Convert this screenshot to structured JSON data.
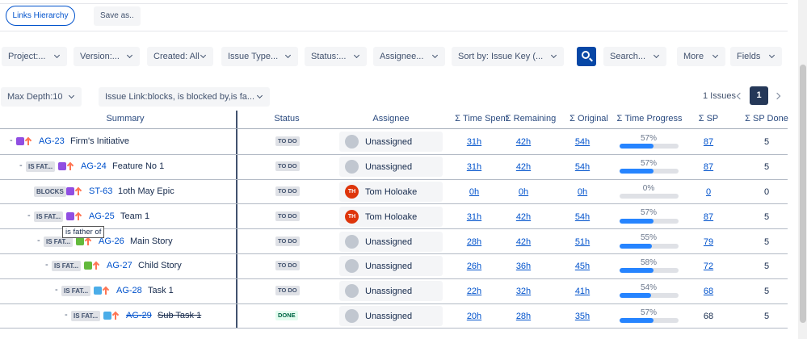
{
  "toolbar": {
    "links_hierarchy": "Links Hierarchy",
    "save_as": "Save as.."
  },
  "filters": [
    "Project:...",
    "Version:...",
    "Created: All",
    "Issue Type...",
    "Status:...",
    "Assignee...",
    "Sort by: Issue Key (..."
  ],
  "search": "Search...",
  "more": "More",
  "fields": "Fields",
  "max_depth": "Max Depth:10",
  "issue_link": "Issue Link:blocks, is blocked by,is fa...",
  "issues_count": "1 Issues",
  "page": "1",
  "columns": [
    "Summary",
    "Status",
    "Assignee",
    "Σ Time Spent",
    "Σ Remaining",
    "Σ Original",
    "Σ Time Progress",
    "Σ SP",
    "Σ SP Done"
  ],
  "tooltip": "is father of",
  "rows": [
    {
      "toggle": "-",
      "type_color": "#904ee2",
      "key": "AG-23",
      "summary": "Firm's Initiative",
      "status": "TO DO",
      "assignee": "Unassigned",
      "time_spent": "31h",
      "remaining": "42h",
      "original": "54h",
      "progress": 57,
      "progress_label": "57%",
      "sp": 87,
      "sp_done": 5
    },
    {
      "toggle": "-",
      "link": "IS FAT...",
      "type_color": "#904ee2",
      "key": "AG-24",
      "summary": "Feature No 1",
      "status": "TO DO",
      "assignee": "Unassigned",
      "time_spent": "31h",
      "remaining": "42h",
      "original": "54h",
      "progress": 57,
      "progress_label": "57%",
      "sp": 87,
      "sp_done": 5
    },
    {
      "link": "BLOCKS",
      "type_color": "#904ee2",
      "key": "ST-63",
      "summary": "1oth May Epic",
      "status": "TO DO",
      "avatar": "TH",
      "assignee": "Tom Holoake",
      "time_spent": "0h",
      "remaining": "0h",
      "original": "0h",
      "progress": 0,
      "progress_label": "0%",
      "sp": 0,
      "sp_done": 0
    },
    {
      "toggle": "-",
      "link": "IS FAT...",
      "type_color": "#904ee2",
      "key": "AG-25",
      "summary": "Team 1",
      "status": "TO DO",
      "avatar": "TH",
      "assignee": "Tom Holoake",
      "time_spent": "31h",
      "remaining": "42h",
      "original": "54h",
      "progress": 57,
      "progress_label": "57%",
      "sp": 87,
      "sp_done": 5
    },
    {
      "toggle": "-",
      "link": "IS FAT...",
      "type_color": "#63ba3c",
      "key": "AG-26",
      "summary": "Main Story",
      "status": "TO DO",
      "assignee": "Unassigned",
      "time_spent": "28h",
      "remaining": "42h",
      "original": "51h",
      "progress": 55,
      "progress_label": "55%",
      "sp": 79,
      "sp_done": 5
    },
    {
      "toggle": "-",
      "link": "IS FAT...",
      "type_color": "#63ba3c",
      "key": "AG-27",
      "summary": "Child Story",
      "status": "TO DO",
      "assignee": "Unassigned",
      "time_spent": "26h",
      "remaining": "36h",
      "original": "45h",
      "progress": 58,
      "progress_label": "58%",
      "sp": 72,
      "sp_done": 5
    },
    {
      "toggle": "-",
      "link": "IS FAT...",
      "type_color": "#4bade8",
      "key": "AG-28",
      "summary": "Task 1",
      "status": "TO DO",
      "assignee": "Unassigned",
      "time_spent": "22h",
      "remaining": "32h",
      "original": "41h",
      "progress": 54,
      "progress_label": "54%",
      "sp": 68,
      "sp_done": 5
    },
    {
      "toggle": "-",
      "link": "IS FAT...",
      "type_color": "#4bade8",
      "key": "AG-29",
      "summary": "Sub Task 1",
      "status": "DONE",
      "assignee": "Unassigned",
      "time_spent": "20h",
      "remaining": "28h",
      "original": "35h",
      "progress": 57,
      "progress_label": "57%",
      "sp": 68,
      "sp_done": 5
    }
  ]
}
